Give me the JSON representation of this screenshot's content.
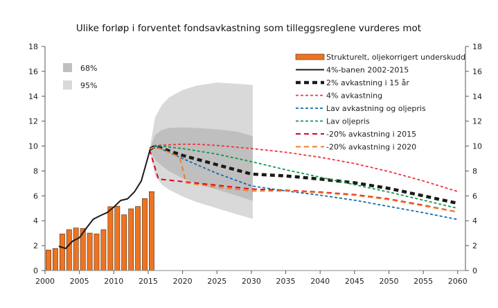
{
  "chart_data": {
    "type": "bar",
    "title": "Ulike forløp i forventet fondsavkastning som tilleggsreglene vurderes mot",
    "xlabel": "",
    "ylabel": "",
    "xlim": [
      2000,
      2061
    ],
    "ylim": [
      0,
      18
    ],
    "x_ticks": [
      2000,
      2005,
      2010,
      2015,
      2020,
      2025,
      2030,
      2035,
      2040,
      2045,
      2050,
      2055,
      2060
    ],
    "y_ticks": [
      0,
      2,
      4,
      6,
      8,
      10,
      12,
      14,
      16,
      18
    ],
    "grid": false,
    "legend_position": "top-right",
    "bars": {
      "name": "Strukturelt, oljekorrigert underskudd",
      "color": "#ee7421",
      "x": [
        2000,
        2001,
        2002,
        2003,
        2004,
        2005,
        2006,
        2007,
        2008,
        2009,
        2010,
        2011,
        2012,
        2013,
        2014,
        2015
      ],
      "values": [
        1.65,
        1.77,
        2.94,
        3.29,
        3.42,
        3.38,
        3.01,
        2.95,
        3.29,
        5.13,
        5.17,
        4.48,
        4.96,
        5.15,
        5.78,
        6.34
      ]
    },
    "bands": [
      {
        "name": "95%",
        "color": "#d9d9d9",
        "x": [
          2015.2,
          2016,
          2017,
          2018,
          2020,
          2022,
          2025,
          2028,
          2030.2
        ],
        "upper": [
          9.7,
          12.3,
          13.3,
          13.9,
          14.5,
          14.85,
          15.1,
          15.0,
          14.9
        ],
        "lower": [
          9.7,
          7.6,
          6.9,
          6.5,
          5.95,
          5.5,
          5.0,
          4.5,
          4.15
        ]
      },
      {
        "name": "68%",
        "color": "#bfbfbf",
        "x": [
          2015.2,
          2016,
          2017,
          2018,
          2020,
          2022,
          2025,
          2028,
          2030.2
        ],
        "upper": [
          9.7,
          10.9,
          11.3,
          11.45,
          11.5,
          11.45,
          11.35,
          11.15,
          10.8
        ],
        "lower": [
          9.7,
          8.9,
          8.4,
          8.0,
          7.4,
          7.0,
          6.5,
          6.0,
          5.6
        ]
      }
    ],
    "series": [
      {
        "name": "4%-banen 2002-2015",
        "color": "#1a1a1a",
        "style": "solid",
        "x": [
          2002,
          2003,
          2004,
          2005,
          2006,
          2007,
          2008,
          2009,
          2010,
          2011,
          2012,
          2013,
          2014,
          2015.3
        ],
        "values": [
          1.95,
          1.77,
          2.36,
          2.64,
          3.4,
          4.12,
          4.4,
          4.65,
          5.1,
          5.63,
          5.76,
          6.32,
          7.2,
          9.75
        ]
      },
      {
        "name": "2% avkastning i 15 år",
        "color": "#1a1a1a",
        "style": "thick-dash",
        "x": [
          2015.3,
          2016,
          2020,
          2025,
          2030,
          2035,
          2040,
          2045,
          2050,
          2055,
          2060
        ],
        "values": [
          9.75,
          10.0,
          9.25,
          8.5,
          7.75,
          7.6,
          7.35,
          7.05,
          6.6,
          6.0,
          5.4
        ]
      },
      {
        "name": "4% avkastning",
        "color": "#ef3340",
        "style": "dash",
        "x": [
          2015.3,
          2016,
          2018,
          2020,
          2022,
          2025,
          2030,
          2035,
          2040,
          2045,
          2050,
          2055,
          2060
        ],
        "values": [
          9.75,
          10.05,
          10.1,
          10.15,
          10.15,
          10.05,
          9.8,
          9.5,
          9.1,
          8.6,
          7.95,
          7.2,
          6.35
        ]
      },
      {
        "name": "Lav avkastning og oljepris",
        "color": "#0d6ab3",
        "style": "dash",
        "x": [
          2015.3,
          2016,
          2020,
          2025,
          2030,
          2035,
          2040,
          2045,
          2050,
          2055,
          2060
        ],
        "values": [
          9.75,
          10.0,
          9.0,
          7.8,
          6.8,
          6.4,
          6.05,
          5.65,
          5.15,
          4.65,
          4.1
        ]
      },
      {
        "name": "Lav oljepris",
        "color": "#0a9a4a",
        "style": "dash",
        "x": [
          2015.3,
          2016,
          2020,
          2025,
          2030,
          2035,
          2040,
          2045,
          2050,
          2055,
          2060
        ],
        "values": [
          9.75,
          10.05,
          9.8,
          9.35,
          8.75,
          8.1,
          7.5,
          6.9,
          6.3,
          5.65,
          5.0
        ]
      },
      {
        "name": "-20% avkastning i 2015",
        "color": "#e2001a",
        "style": "long-dash",
        "x": [
          2015.2,
          2016.5,
          2020,
          2025,
          2030,
          2035,
          2040,
          2045,
          2050,
          2055,
          2060
        ],
        "values": [
          9.7,
          7.35,
          7.15,
          6.85,
          6.55,
          6.45,
          6.3,
          6.1,
          5.75,
          5.25,
          4.7
        ]
      },
      {
        "name": "-20% avkastning i 2020",
        "color": "#f07c23",
        "style": "long-dash",
        "x": [
          2015.3,
          2016,
          2018,
          2019.6,
          2020.5,
          2025,
          2030,
          2035,
          2040,
          2045,
          2050,
          2055,
          2060
        ],
        "values": [
          9.75,
          9.95,
          9.5,
          9.1,
          7.05,
          6.7,
          6.4,
          6.4,
          6.25,
          6.05,
          5.7,
          5.2,
          4.7
        ]
      }
    ],
    "legend": [
      {
        "label": "Strukturelt, oljekorrigert underskudd",
        "kind": "bar",
        "color": "#ee7421"
      },
      {
        "label": "4%-banen 2002-2015",
        "kind": "solid",
        "color": "#1a1a1a"
      },
      {
        "label": "2% avkastning i 15 år",
        "kind": "thick-dash",
        "color": "#1a1a1a"
      },
      {
        "label": "4% avkastning",
        "kind": "dash",
        "color": "#ef3340"
      },
      {
        "label": "Lav avkastning og oljepris",
        "kind": "dash",
        "color": "#0d6ab3"
      },
      {
        "label": "Lav oljepris",
        "kind": "dash",
        "color": "#0a9a4a"
      },
      {
        "label": "-20% avkastning i 2015",
        "kind": "long-dash",
        "color": "#e2001a"
      },
      {
        "label": "-20% avkastning i 2020",
        "kind": "long-dash",
        "color": "#f07c23"
      }
    ],
    "band_legend": [
      {
        "label": "68%",
        "color": "#bfbfbf"
      },
      {
        "label": "95%",
        "color": "#d9d9d9"
      }
    ]
  }
}
